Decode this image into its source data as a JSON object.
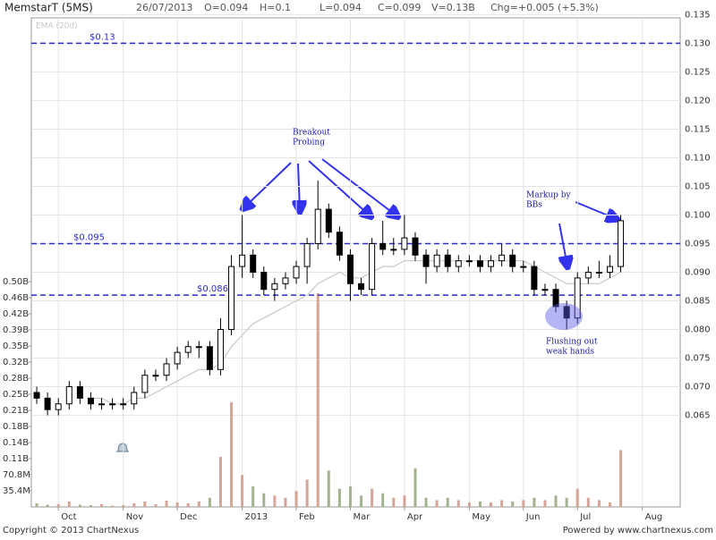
{
  "header": {
    "symbol": "MemstarT (5MS)",
    "date": "26/07/2013",
    "open": "O=0.094",
    "high": "H=0.1",
    "low": "L=0.094",
    "close": "C=0.099",
    "volume": "V=0.13B",
    "change": "Chg=+0.005 (+5.3%)"
  },
  "footer": {
    "copyright": "Copyright © 2013 ChartNexus",
    "powered": "Powered by www.chartnexus.com"
  },
  "chart_data": {
    "type": "candlestick",
    "categories": [
      null,
      null,
      "Oct",
      null,
      null,
      null,
      null,
      null,
      "Nov",
      null,
      null,
      null,
      null,
      "Dec",
      null,
      null,
      null,
      null,
      null,
      "2013",
      null,
      null,
      null,
      null,
      "Feb",
      null,
      null,
      null,
      null,
      "Mar",
      null,
      null,
      null,
      null,
      "Apr",
      null,
      null,
      null,
      null,
      null,
      "May",
      null,
      null,
      null,
      null,
      "Jun",
      null,
      null,
      null,
      null,
      "Jul",
      null,
      null,
      null,
      null,
      null,
      "Aug",
      null,
      null,
      null
    ],
    "open": [
      0.069,
      0.068,
      0.066,
      0.067,
      0.07,
      0.068,
      0.067,
      0.067,
      0.067,
      0.067,
      0.069,
      0.072,
      0.072,
      0.074,
      0.076,
      0.077,
      0.077,
      0.073,
      0.08,
      0.091,
      0.093,
      0.09,
      0.087,
      0.088,
      0.089,
      0.091,
      0.095,
      0.101,
      0.097,
      0.093,
      0.088,
      0.087,
      0.095,
      0.094,
      0.094,
      0.096,
      0.093,
      0.091,
      0.093,
      0.091,
      0.092,
      0.092,
      0.091,
      0.092,
      0.093,
      0.091,
      0.091,
      0.087,
      0.087,
      0.084,
      0.082,
      0.089,
      0.09,
      0.09,
      0.091,
      null,
      null,
      null,
      null,
      null
    ],
    "high": [
      0.07,
      0.069,
      0.068,
      0.071,
      0.071,
      0.069,
      0.068,
      0.068,
      0.068,
      0.07,
      0.073,
      0.073,
      0.075,
      0.077,
      0.078,
      0.078,
      0.078,
      0.082,
      0.093,
      0.1,
      0.094,
      0.091,
      0.089,
      0.09,
      0.092,
      0.096,
      0.106,
      0.102,
      0.098,
      0.094,
      0.089,
      0.096,
      0.099,
      0.096,
      0.1,
      0.097,
      0.094,
      0.094,
      0.094,
      0.093,
      0.093,
      0.093,
      0.093,
      0.095,
      0.094,
      0.092,
      0.092,
      0.088,
      0.088,
      0.085,
      0.09,
      0.091,
      0.092,
      0.093,
      0.1,
      null,
      null,
      null,
      null,
      null
    ],
    "low": [
      0.067,
      0.065,
      0.065,
      0.066,
      0.067,
      0.066,
      0.066,
      0.066,
      0.066,
      0.066,
      0.068,
      0.071,
      0.071,
      0.073,
      0.075,
      0.075,
      0.072,
      0.072,
      0.079,
      0.089,
      0.089,
      0.086,
      0.085,
      0.087,
      0.088,
      0.088,
      0.094,
      0.096,
      0.092,
      0.085,
      0.086,
      0.086,
      0.093,
      0.093,
      0.093,
      0.092,
      0.088,
      0.09,
      0.09,
      0.09,
      0.091,
      0.09,
      0.09,
      0.091,
      0.09,
      0.09,
      0.086,
      0.086,
      0.083,
      0.08,
      0.081,
      0.088,
      0.089,
      0.089,
      0.09,
      null,
      null,
      null,
      null,
      null
    ],
    "close": [
      0.068,
      0.066,
      0.067,
      0.07,
      0.068,
      0.067,
      0.067,
      0.067,
      0.067,
      0.069,
      0.072,
      0.072,
      0.074,
      0.076,
      0.077,
      0.077,
      0.073,
      0.08,
      0.091,
      0.093,
      0.09,
      0.087,
      0.088,
      0.089,
      0.091,
      0.095,
      0.101,
      0.097,
      0.093,
      0.088,
      0.087,
      0.095,
      0.094,
      0.094,
      0.096,
      0.093,
      0.091,
      0.093,
      0.091,
      0.092,
      0.092,
      0.091,
      0.092,
      0.093,
      0.091,
      0.091,
      0.087,
      0.087,
      0.084,
      0.082,
      0.089,
      0.09,
      0.09,
      0.091,
      0.099,
      null,
      null,
      null,
      null,
      null
    ],
    "up_color": "#ffffff",
    "down_color": "#000000",
    "series": [
      {
        "name": "EMA (20d)",
        "color": "#c8c8c8",
        "values": [
          null,
          null,
          null,
          null,
          null,
          0.068,
          0.068,
          0.067,
          0.067,
          0.068,
          0.068,
          0.069,
          0.07,
          0.071,
          0.072,
          0.073,
          0.073,
          0.074,
          0.077,
          0.079,
          0.081,
          0.082,
          0.083,
          0.084,
          0.085,
          0.086,
          0.088,
          0.089,
          0.09,
          0.089,
          0.089,
          0.09,
          0.091,
          0.091,
          0.092,
          0.092,
          0.092,
          0.092,
          0.092,
          0.092,
          0.092,
          0.092,
          0.092,
          0.092,
          0.092,
          0.092,
          0.091,
          0.09,
          0.089,
          0.088,
          0.088,
          0.088,
          0.088,
          0.089,
          0.09,
          null,
          null,
          null,
          null,
          null
        ]
      }
    ],
    "volume": {
      "axis": "y2",
      "up_color": "#d6a496",
      "down_color": "#a3b38f",
      "values": [
        8,
        5,
        6,
        12,
        5,
        4,
        6,
        3,
        4,
        8,
        12,
        6,
        14,
        10,
        8,
        12,
        20,
        110,
        230,
        70,
        45,
        30,
        25,
        20,
        35,
        60,
        470,
        80,
        40,
        45,
        25,
        40,
        30,
        20,
        25,
        85,
        20,
        15,
        20,
        15,
        10,
        12,
        10,
        15,
        12,
        15,
        20,
        15,
        25,
        20,
        40,
        20,
        15,
        10,
        125,
        null,
        null,
        null,
        null,
        null
      ]
    },
    "ylim": [
      0.049,
      0.136
    ],
    "yticks": [
      {
        "value": 0.065,
        "label": "0.065"
      },
      {
        "value": 0.07,
        "label": "0.070"
      },
      {
        "value": 0.075,
        "label": "0.075"
      },
      {
        "value": 0.08,
        "label": "0.080"
      },
      {
        "value": 0.085,
        "label": "0.085"
      },
      {
        "value": 0.09,
        "label": "0.090"
      },
      {
        "value": 0.095,
        "label": "0.095"
      },
      {
        "value": 0.1,
        "label": "0.100"
      },
      {
        "value": 0.105,
        "label": "0.105"
      },
      {
        "value": 0.11,
        "label": "0.110"
      },
      {
        "value": 0.115,
        "label": "0.115"
      },
      {
        "value": 0.12,
        "label": "0.120"
      },
      {
        "value": 0.125,
        "label": "0.125"
      },
      {
        "value": 0.13,
        "label": "0.130"
      },
      {
        "value": 0.135,
        "label": "0.135"
      }
    ],
    "y2lim": [
      0,
      1095
    ],
    "y2ticks": [
      {
        "value": 35.4,
        "label": "35.4M"
      },
      {
        "value": 70.8,
        "label": "70.8M"
      },
      {
        "value": 106.2,
        "label": "0.11B"
      },
      {
        "value": 141.6,
        "label": "0.14B"
      },
      {
        "value": 177,
        "label": "0.18B"
      },
      {
        "value": 212.4,
        "label": "0.21B"
      },
      {
        "value": 247.8,
        "label": "0.25B"
      },
      {
        "value": 283.2,
        "label": "0.28B"
      },
      {
        "value": 318.6,
        "label": "0.32B"
      },
      {
        "value": 354,
        "label": "0.35B"
      },
      {
        "value": 389.4,
        "label": "0.39B"
      },
      {
        "value": 424.8,
        "label": "0.42B"
      },
      {
        "value": 460.2,
        "label": "0.46B"
      },
      {
        "value": 495.6,
        "label": "0.50B"
      }
    ],
    "levels": [
      {
        "value": 0.13,
        "label": "$0.13"
      },
      {
        "value": 0.095,
        "label": "$0.095"
      },
      {
        "value": 0.086,
        "label": "$0.086"
      }
    ],
    "annotations": [
      {
        "lines": [
          "Breakout",
          "Probing"
        ]
      },
      {
        "lines": [
          "Markup by",
          "BBs"
        ]
      },
      {
        "lines": [
          "Flushing out",
          "weak hands"
        ]
      }
    ],
    "grid": true
  }
}
